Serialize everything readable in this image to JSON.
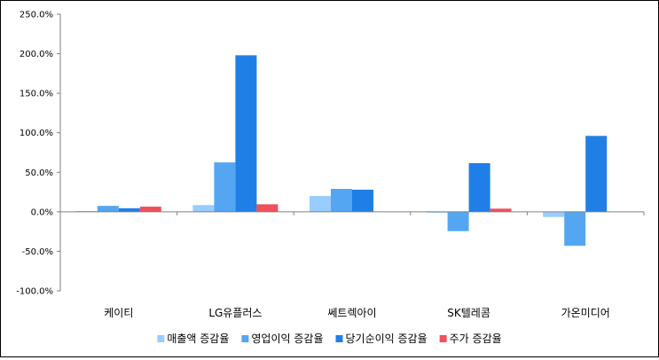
{
  "chart_data": {
    "type": "bar",
    "categories": [
      "케이티",
      "LG유플러스",
      "쎄트렉아이",
      "SK텔레콤",
      "가온미디어"
    ],
    "series": [
      {
        "name": "매출액 증감율",
        "color": "#99ccff",
        "values": [
          1.0,
          8.5,
          20.0,
          -1.0,
          -6.5
        ]
      },
      {
        "name": "영업이익 증감율",
        "color": "#55a6f2",
        "values": [
          7.5,
          62.5,
          29.0,
          -24.5,
          -43.0
        ]
      },
      {
        "name": "당기순이익 증감율",
        "color": "#1f7fe6",
        "values": [
          4.5,
          198.0,
          28.0,
          61.5,
          96.0
        ]
      },
      {
        "name": "주가 증감율",
        "color": "#f0505a",
        "values": [
          6.5,
          9.5,
          0,
          4.0,
          0
        ]
      }
    ],
    "yticks": [
      "-100.0%",
      "-50.0%",
      "0.0%",
      "50.0%",
      "100.0%",
      "150.0%",
      "200.0%",
      "250.0%"
    ],
    "ylim": [
      -100,
      250
    ],
    "legend_position": "bottom",
    "grid": false
  }
}
